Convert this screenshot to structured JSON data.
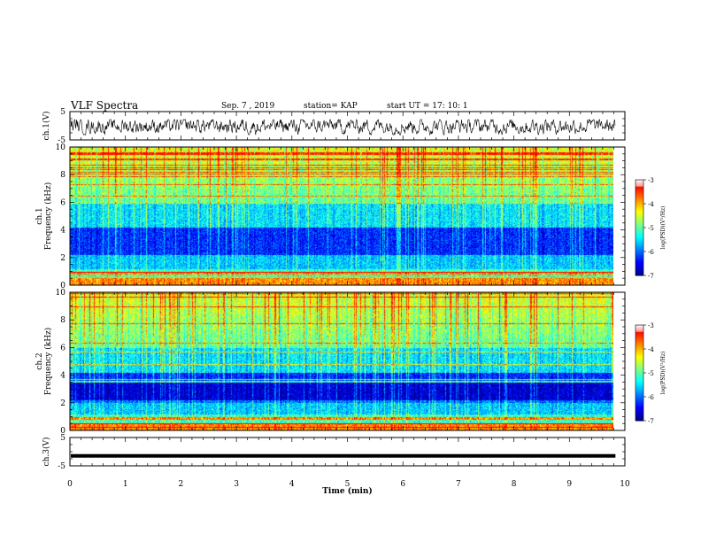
{
  "header": {
    "title": "VLF Spectra",
    "date": "Sep. 7 , 2019",
    "station": "station= KAP",
    "start": "start  UT =   17: 10: 1"
  },
  "chart_data": [
    {
      "type": "line",
      "title": "",
      "ylabel": "ch.1(V)",
      "ylim": [
        -5,
        5
      ],
      "yticks": [
        "5",
        "-5"
      ],
      "xlim": [
        0,
        10
      ],
      "description_of_series": "noisy waveform between about -3 and 2 V",
      "series": [
        {
          "values_range": [
            -3,
            2
          ]
        }
      ]
    },
    {
      "type": "heatmap",
      "ylabel": "ch.1\nFrequency (kHz)",
      "ylim": [
        0,
        10
      ],
      "yticks": [
        "0",
        "2",
        "4",
        "6",
        "8",
        "10"
      ],
      "xlim": [
        0,
        9.8
      ],
      "colorbar": {
        "label": "log(PSD)(V²/Hz)",
        "range": [
          -7,
          -3
        ],
        "ticks": [
          "-3",
          "-4",
          "-5",
          "-6",
          "-7"
        ]
      }
    },
    {
      "type": "heatmap",
      "ylabel": "ch.2\nFrequency (kHz)",
      "ylim": [
        0,
        10
      ],
      "yticks": [
        "0",
        "2",
        "4",
        "6",
        "8",
        "10"
      ],
      "xlim": [
        0,
        9.8
      ],
      "colorbar": {
        "label": "log(PSD)(V²/Hz)",
        "range": [
          -7,
          -3
        ],
        "ticks": [
          "-3",
          "-4",
          "-5",
          "-6",
          "-7"
        ]
      }
    },
    {
      "type": "line",
      "ylabel": "ch.3(V)",
      "ylim": [
        -5,
        5
      ],
      "yticks": [
        "5",
        "-5"
      ],
      "xlim": [
        0,
        10
      ],
      "series": [
        {
          "constant_value": -1.5
        }
      ]
    }
  ],
  "xaxis": {
    "label": "Time  (min)",
    "ticks": [
      "0",
      "1",
      "2",
      "3",
      "4",
      "5",
      "6",
      "7",
      "8",
      "9",
      "10"
    ],
    "range": [
      0,
      10
    ]
  },
  "colors": {
    "colormap": [
      "#00008f",
      "#0000ff",
      "#0080ff",
      "#00ffff",
      "#80ff80",
      "#ffff00",
      "#ff8000",
      "#ff0000",
      "#ffffff"
    ]
  }
}
